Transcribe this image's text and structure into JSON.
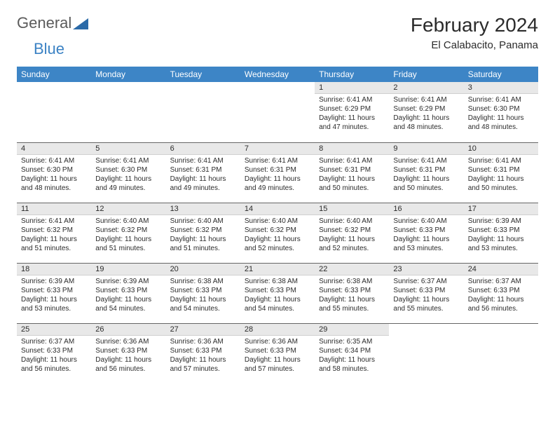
{
  "logo": {
    "general": "General",
    "blue": "Blue"
  },
  "title": "February 2024",
  "subtitle": "El Calabacito, Panama",
  "weekdays": [
    "Sunday",
    "Monday",
    "Tuesday",
    "Wednesday",
    "Thursday",
    "Friday",
    "Saturday"
  ],
  "colors": {
    "header_bg": "#3d85c6",
    "header_text": "#ffffff",
    "daynum_bg": "#e8e8e8",
    "text": "#2b2b2b",
    "logo_gray": "#5b5b5b",
    "logo_blue": "#3b82c4"
  },
  "cells": [
    [
      {
        "empty": true
      },
      {
        "empty": true
      },
      {
        "empty": true
      },
      {
        "empty": true
      },
      {
        "day": "1",
        "sunrise": "Sunrise: 6:41 AM",
        "sunset": "Sunset: 6:29 PM",
        "daylight": "Daylight: 11 hours and 47 minutes."
      },
      {
        "day": "2",
        "sunrise": "Sunrise: 6:41 AM",
        "sunset": "Sunset: 6:29 PM",
        "daylight": "Daylight: 11 hours and 48 minutes."
      },
      {
        "day": "3",
        "sunrise": "Sunrise: 6:41 AM",
        "sunset": "Sunset: 6:30 PM",
        "daylight": "Daylight: 11 hours and 48 minutes."
      }
    ],
    [
      {
        "day": "4",
        "sunrise": "Sunrise: 6:41 AM",
        "sunset": "Sunset: 6:30 PM",
        "daylight": "Daylight: 11 hours and 48 minutes."
      },
      {
        "day": "5",
        "sunrise": "Sunrise: 6:41 AM",
        "sunset": "Sunset: 6:30 PM",
        "daylight": "Daylight: 11 hours and 49 minutes."
      },
      {
        "day": "6",
        "sunrise": "Sunrise: 6:41 AM",
        "sunset": "Sunset: 6:31 PM",
        "daylight": "Daylight: 11 hours and 49 minutes."
      },
      {
        "day": "7",
        "sunrise": "Sunrise: 6:41 AM",
        "sunset": "Sunset: 6:31 PM",
        "daylight": "Daylight: 11 hours and 49 minutes."
      },
      {
        "day": "8",
        "sunrise": "Sunrise: 6:41 AM",
        "sunset": "Sunset: 6:31 PM",
        "daylight": "Daylight: 11 hours and 50 minutes."
      },
      {
        "day": "9",
        "sunrise": "Sunrise: 6:41 AM",
        "sunset": "Sunset: 6:31 PM",
        "daylight": "Daylight: 11 hours and 50 minutes."
      },
      {
        "day": "10",
        "sunrise": "Sunrise: 6:41 AM",
        "sunset": "Sunset: 6:31 PM",
        "daylight": "Daylight: 11 hours and 50 minutes."
      }
    ],
    [
      {
        "day": "11",
        "sunrise": "Sunrise: 6:41 AM",
        "sunset": "Sunset: 6:32 PM",
        "daylight": "Daylight: 11 hours and 51 minutes."
      },
      {
        "day": "12",
        "sunrise": "Sunrise: 6:40 AM",
        "sunset": "Sunset: 6:32 PM",
        "daylight": "Daylight: 11 hours and 51 minutes."
      },
      {
        "day": "13",
        "sunrise": "Sunrise: 6:40 AM",
        "sunset": "Sunset: 6:32 PM",
        "daylight": "Daylight: 11 hours and 51 minutes."
      },
      {
        "day": "14",
        "sunrise": "Sunrise: 6:40 AM",
        "sunset": "Sunset: 6:32 PM",
        "daylight": "Daylight: 11 hours and 52 minutes."
      },
      {
        "day": "15",
        "sunrise": "Sunrise: 6:40 AM",
        "sunset": "Sunset: 6:32 PM",
        "daylight": "Daylight: 11 hours and 52 minutes."
      },
      {
        "day": "16",
        "sunrise": "Sunrise: 6:40 AM",
        "sunset": "Sunset: 6:33 PM",
        "daylight": "Daylight: 11 hours and 53 minutes."
      },
      {
        "day": "17",
        "sunrise": "Sunrise: 6:39 AM",
        "sunset": "Sunset: 6:33 PM",
        "daylight": "Daylight: 11 hours and 53 minutes."
      }
    ],
    [
      {
        "day": "18",
        "sunrise": "Sunrise: 6:39 AM",
        "sunset": "Sunset: 6:33 PM",
        "daylight": "Daylight: 11 hours and 53 minutes."
      },
      {
        "day": "19",
        "sunrise": "Sunrise: 6:39 AM",
        "sunset": "Sunset: 6:33 PM",
        "daylight": "Daylight: 11 hours and 54 minutes."
      },
      {
        "day": "20",
        "sunrise": "Sunrise: 6:38 AM",
        "sunset": "Sunset: 6:33 PM",
        "daylight": "Daylight: 11 hours and 54 minutes."
      },
      {
        "day": "21",
        "sunrise": "Sunrise: 6:38 AM",
        "sunset": "Sunset: 6:33 PM",
        "daylight": "Daylight: 11 hours and 54 minutes."
      },
      {
        "day": "22",
        "sunrise": "Sunrise: 6:38 AM",
        "sunset": "Sunset: 6:33 PM",
        "daylight": "Daylight: 11 hours and 55 minutes."
      },
      {
        "day": "23",
        "sunrise": "Sunrise: 6:37 AM",
        "sunset": "Sunset: 6:33 PM",
        "daylight": "Daylight: 11 hours and 55 minutes."
      },
      {
        "day": "24",
        "sunrise": "Sunrise: 6:37 AM",
        "sunset": "Sunset: 6:33 PM",
        "daylight": "Daylight: 11 hours and 56 minutes."
      }
    ],
    [
      {
        "day": "25",
        "sunrise": "Sunrise: 6:37 AM",
        "sunset": "Sunset: 6:33 PM",
        "daylight": "Daylight: 11 hours and 56 minutes."
      },
      {
        "day": "26",
        "sunrise": "Sunrise: 6:36 AM",
        "sunset": "Sunset: 6:33 PM",
        "daylight": "Daylight: 11 hours and 56 minutes."
      },
      {
        "day": "27",
        "sunrise": "Sunrise: 6:36 AM",
        "sunset": "Sunset: 6:33 PM",
        "daylight": "Daylight: 11 hours and 57 minutes."
      },
      {
        "day": "28",
        "sunrise": "Sunrise: 6:36 AM",
        "sunset": "Sunset: 6:33 PM",
        "daylight": "Daylight: 11 hours and 57 minutes."
      },
      {
        "day": "29",
        "sunrise": "Sunrise: 6:35 AM",
        "sunset": "Sunset: 6:34 PM",
        "daylight": "Daylight: 11 hours and 58 minutes."
      },
      {
        "empty": true
      },
      {
        "empty": true
      }
    ]
  ]
}
